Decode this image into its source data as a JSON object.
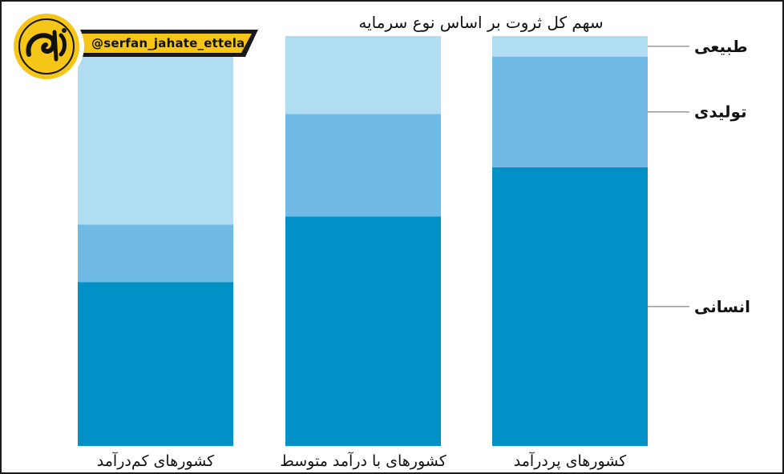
{
  "brand": {
    "handle": "@serfan_jahate_ettela",
    "logo_text": "صرفاً جهت اطلاع",
    "colors": {
      "banner": "#f5c518",
      "banner_dark": "#1a1a1a",
      "logo_ring": "#f5c518",
      "logo_inner": "#111111"
    }
  },
  "chart_data": {
    "type": "bar",
    "stacked": true,
    "normalized": true,
    "title": "سهم کل ثروت بر اساس نوع سرمایه",
    "categories": [
      "کشورهای کم‌درآمد",
      "کشورهای با درآمد متوسط",
      "کشورهای پردرآمد"
    ],
    "series": [
      {
        "name": "انسانی",
        "values": [
          0.4,
          0.56,
          0.68
        ],
        "color": "#0291c6"
      },
      {
        "name": "تولیدی",
        "values": [
          0.14,
          0.25,
          0.27
        ],
        "color": "#6fbbe6"
      },
      {
        "name": "طبیعی",
        "values": [
          0.46,
          0.19,
          0.05
        ],
        "color": "#b0ddf2"
      }
    ],
    "ylim": [
      0,
      1
    ],
    "grid": false,
    "legend": "right, labels pointing to segments of the last bar"
  }
}
